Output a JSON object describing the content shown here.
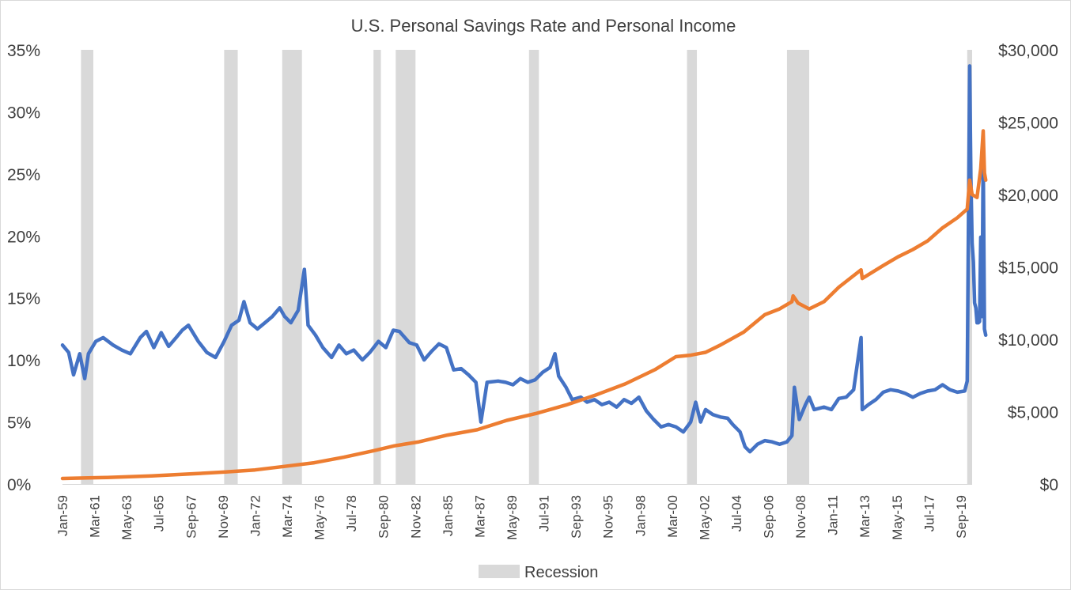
{
  "chart_data": {
    "type": "line",
    "title": "U.S. Personal Savings Rate and Personal Income",
    "x_range": [
      "Jan-59",
      "Jun-20"
    ],
    "x_tick_labels": [
      "Jan-59",
      "Mar-61",
      "May-63",
      "Jul-65",
      "Sep-67",
      "Nov-69",
      "Jan-72",
      "Mar-74",
      "May-76",
      "Jul-78",
      "Sep-80",
      "Nov-82",
      "Jan-85",
      "Mar-87",
      "May-89",
      "Jul-91",
      "Sep-93",
      "Nov-95",
      "Jan-98",
      "Mar-00",
      "May-02",
      "Jul-04",
      "Sep-06",
      "Nov-08",
      "Jan-11",
      "Mar-13",
      "May-15",
      "Jul-17",
      "Sep-19"
    ],
    "y_left": {
      "range": [
        0,
        35
      ],
      "ticks": [
        "0%",
        "5%",
        "10%",
        "15%",
        "20%",
        "25%",
        "30%",
        "35%"
      ]
    },
    "y_right": {
      "range": [
        0,
        30000
      ],
      "ticks": [
        "$0",
        "$5,000",
        "$10,000",
        "$15,000",
        "$20,000",
        "$25,000",
        "$30,000"
      ]
    },
    "grid": false,
    "legend": {
      "position": "bottom",
      "entries": [
        "Recession"
      ]
    },
    "recessions": [
      [
        "1960-04",
        "1961-02"
      ],
      [
        "1969-12",
        "1970-11"
      ],
      [
        "1973-11",
        "1975-03"
      ],
      [
        "1980-01",
        "1980-07"
      ],
      [
        "1981-07",
        "1982-11"
      ],
      [
        "1990-07",
        "1991-03"
      ],
      [
        "2001-03",
        "2001-11"
      ],
      [
        "2007-12",
        "2009-06"
      ],
      [
        "2020-02",
        "2020-06"
      ]
    ],
    "series": [
      {
        "axis": "left",
        "color": "#4472c4",
        "points": [
          [
            "1959-01",
            11.2
          ],
          [
            "1959-06",
            10.6
          ],
          [
            "1959-10",
            8.8
          ],
          [
            "1960-03",
            10.5
          ],
          [
            "1960-07",
            8.5
          ],
          [
            "1960-10",
            10.5
          ],
          [
            "1961-04",
            11.5
          ],
          [
            "1961-10",
            11.8
          ],
          [
            "1962-06",
            11.2
          ],
          [
            "1963-01",
            10.8
          ],
          [
            "1963-08",
            10.5
          ],
          [
            "1964-04",
            11.8
          ],
          [
            "1964-09",
            12.3
          ],
          [
            "1965-03",
            11.0
          ],
          [
            "1965-09",
            12.2
          ],
          [
            "1966-03",
            11.1
          ],
          [
            "1966-09",
            11.8
          ],
          [
            "1967-02",
            12.4
          ],
          [
            "1967-07",
            12.8
          ],
          [
            "1968-03",
            11.5
          ],
          [
            "1968-10",
            10.6
          ],
          [
            "1969-05",
            10.2
          ],
          [
            "1969-12",
            11.5
          ],
          [
            "1970-06",
            12.8
          ],
          [
            "1970-12",
            13.2
          ],
          [
            "1971-04",
            14.7
          ],
          [
            "1971-09",
            13.0
          ],
          [
            "1972-03",
            12.5
          ],
          [
            "1972-09",
            13.0
          ],
          [
            "1973-03",
            13.5
          ],
          [
            "1973-09",
            14.2
          ],
          [
            "1974-01",
            13.5
          ],
          [
            "1974-06",
            13.0
          ],
          [
            "1974-12",
            14.0
          ],
          [
            "1975-05",
            17.3
          ],
          [
            "1975-08",
            12.8
          ],
          [
            "1976-02",
            12.0
          ],
          [
            "1976-08",
            11.0
          ],
          [
            "1977-03",
            10.2
          ],
          [
            "1977-09",
            11.2
          ],
          [
            "1978-03",
            10.5
          ],
          [
            "1978-09",
            10.8
          ],
          [
            "1979-04",
            10.0
          ],
          [
            "1979-10",
            10.6
          ],
          [
            "1980-05",
            11.5
          ],
          [
            "1980-11",
            11.0
          ],
          [
            "1981-05",
            12.4
          ],
          [
            "1981-10",
            12.3
          ],
          [
            "1982-06",
            11.4
          ],
          [
            "1982-12",
            11.2
          ],
          [
            "1983-06",
            10.0
          ],
          [
            "1983-12",
            10.7
          ],
          [
            "1984-06",
            11.3
          ],
          [
            "1984-12",
            11.0
          ],
          [
            "1985-06",
            9.2
          ],
          [
            "1985-12",
            9.3
          ],
          [
            "1986-06",
            8.8
          ],
          [
            "1986-12",
            8.2
          ],
          [
            "1987-04",
            5.0
          ],
          [
            "1987-09",
            8.2
          ],
          [
            "1988-06",
            8.3
          ],
          [
            "1988-12",
            8.2
          ],
          [
            "1989-06",
            8.0
          ],
          [
            "1989-12",
            8.5
          ],
          [
            "1990-06",
            8.2
          ],
          [
            "1990-12",
            8.4
          ],
          [
            "1991-06",
            9.0
          ],
          [
            "1991-12",
            9.4
          ],
          [
            "1992-04",
            10.5
          ],
          [
            "1992-07",
            8.7
          ],
          [
            "1993-01",
            7.8
          ],
          [
            "1993-06",
            6.8
          ],
          [
            "1994-01",
            7.0
          ],
          [
            "1994-06",
            6.6
          ],
          [
            "1994-12",
            6.8
          ],
          [
            "1995-06",
            6.4
          ],
          [
            "1995-12",
            6.6
          ],
          [
            "1996-06",
            6.2
          ],
          [
            "1996-12",
            6.8
          ],
          [
            "1997-06",
            6.5
          ],
          [
            "1997-12",
            7.0
          ],
          [
            "1998-06",
            5.9
          ],
          [
            "1998-12",
            5.2
          ],
          [
            "1999-06",
            4.6
          ],
          [
            "1999-12",
            4.8
          ],
          [
            "2000-06",
            4.6
          ],
          [
            "2000-12",
            4.2
          ],
          [
            "2001-06",
            5.0
          ],
          [
            "2001-10",
            6.6
          ],
          [
            "2002-02",
            5.0
          ],
          [
            "2002-06",
            6.0
          ],
          [
            "2002-12",
            5.6
          ],
          [
            "2003-06",
            5.4
          ],
          [
            "2003-12",
            5.3
          ],
          [
            "2004-04",
            4.8
          ],
          [
            "2004-10",
            4.2
          ],
          [
            "2005-02",
            3.0
          ],
          [
            "2005-06",
            2.6
          ],
          [
            "2005-12",
            3.2
          ],
          [
            "2006-06",
            3.5
          ],
          [
            "2006-12",
            3.4
          ],
          [
            "2007-06",
            3.2
          ],
          [
            "2007-12",
            3.4
          ],
          [
            "2008-04",
            3.9
          ],
          [
            "2008-06",
            7.8
          ],
          [
            "2008-10",
            5.2
          ],
          [
            "2009-03",
            6.4
          ],
          [
            "2009-06",
            7.0
          ],
          [
            "2009-10",
            6.0
          ],
          [
            "2010-06",
            6.2
          ],
          [
            "2010-12",
            6.0
          ],
          [
            "2011-06",
            6.9
          ],
          [
            "2011-12",
            7.0
          ],
          [
            "2012-06",
            7.6
          ],
          [
            "2012-12",
            11.8
          ],
          [
            "2013-01",
            6.0
          ],
          [
            "2013-06",
            6.4
          ],
          [
            "2013-12",
            6.8
          ],
          [
            "2014-06",
            7.4
          ],
          [
            "2014-12",
            7.6
          ],
          [
            "2015-06",
            7.5
          ],
          [
            "2015-12",
            7.3
          ],
          [
            "2016-06",
            7.0
          ],
          [
            "2016-12",
            7.3
          ],
          [
            "2017-06",
            7.5
          ],
          [
            "2017-12",
            7.6
          ],
          [
            "2018-06",
            8.0
          ],
          [
            "2018-12",
            7.6
          ],
          [
            "2019-06",
            7.4
          ],
          [
            "2019-12",
            7.5
          ],
          [
            "2020-02",
            8.3
          ],
          [
            "2020-04",
            33.7
          ],
          [
            "2020-05",
            24.8
          ],
          [
            "2020-06",
            19.4
          ],
          [
            "2020-07",
            17.9
          ],
          [
            "2020-08",
            14.6
          ],
          [
            "2020-09",
            14.2
          ],
          [
            "2020-10",
            13.0
          ],
          [
            "2020-11",
            13.0
          ],
          [
            "2020-12",
            13.1
          ],
          [
            "2021-01",
            19.9
          ],
          [
            "2021-02",
            13.5
          ],
          [
            "2021-03",
            26.6
          ],
          [
            "2021-04",
            12.5
          ],
          [
            "2021-05",
            12.0
          ]
        ]
      },
      {
        "axis": "right",
        "color": "#ed7d31",
        "points": [
          [
            "1959-01",
            384
          ],
          [
            "1962-01",
            455
          ],
          [
            "1965-01",
            560
          ],
          [
            "1968-01",
            717
          ],
          [
            "1970-01",
            834
          ],
          [
            "1972-01",
            972
          ],
          [
            "1974-01",
            1220
          ],
          [
            "1976-01",
            1470
          ],
          [
            "1978-01",
            1850
          ],
          [
            "1980-01",
            2300
          ],
          [
            "1981-06",
            2640
          ],
          [
            "1983-01",
            2900
          ],
          [
            "1985-01",
            3380
          ],
          [
            "1987-01",
            3750
          ],
          [
            "1989-01",
            4400
          ],
          [
            "1991-01",
            4880
          ],
          [
            "1993-01",
            5460
          ],
          [
            "1995-01",
            6150
          ],
          [
            "1997-01",
            6920
          ],
          [
            "1999-01",
            7900
          ],
          [
            "2000-06",
            8800
          ],
          [
            "2001-06",
            8900
          ],
          [
            "2002-06",
            9100
          ],
          [
            "2003-06",
            9600
          ],
          [
            "2005-01",
            10500
          ],
          [
            "2006-06",
            11700
          ],
          [
            "2007-06",
            12100
          ],
          [
            "2008-04",
            12600
          ],
          [
            "2008-05",
            13000
          ],
          [
            "2008-09",
            12500
          ],
          [
            "2009-06",
            12100
          ],
          [
            "2010-06",
            12600
          ],
          [
            "2011-06",
            13600
          ],
          [
            "2012-06",
            14400
          ],
          [
            "2012-12",
            14800
          ],
          [
            "2013-01",
            14200
          ],
          [
            "2014-06",
            15100
          ],
          [
            "2015-06",
            15700
          ],
          [
            "2016-06",
            16200
          ],
          [
            "2017-06",
            16800
          ],
          [
            "2018-06",
            17700
          ],
          [
            "2019-06",
            18400
          ],
          [
            "2020-02",
            19000
          ],
          [
            "2020-04",
            21000
          ],
          [
            "2020-06",
            20000
          ],
          [
            "2020-10",
            19800
          ],
          [
            "2021-01",
            21800
          ],
          [
            "2021-03",
            24400
          ],
          [
            "2021-04",
            21500
          ],
          [
            "2021-05",
            21000
          ]
        ]
      }
    ]
  }
}
